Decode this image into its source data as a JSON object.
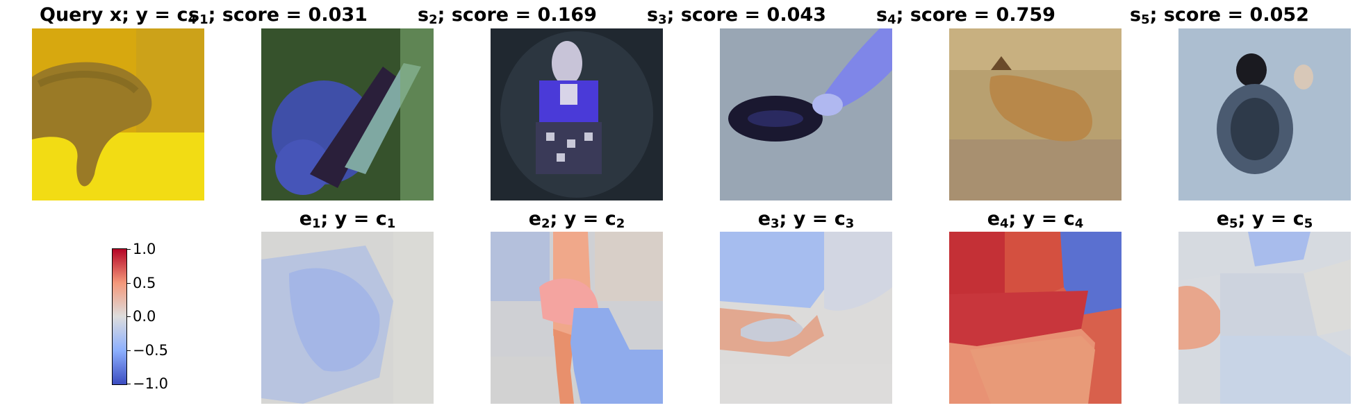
{
  "query": {
    "label": "Query x",
    "class_prefix": "; y = c",
    "class_index": "4",
    "image": "query-image-dolphin"
  },
  "samples": [
    {
      "label": "s",
      "index": "1",
      "score_text": "; score = 0.031",
      "image": "sample-image-butterfly"
    },
    {
      "label": "s",
      "index": "2",
      "score_text": "; score = 0.169",
      "image": "sample-image-person"
    },
    {
      "label": "s",
      "index": "3",
      "score_text": "; score = 0.043",
      "image": "sample-image-shoe"
    },
    {
      "label": "s",
      "index": "4",
      "score_text": "; score = 0.759",
      "image": "sample-image-animal"
    },
    {
      "label": "s",
      "index": "5",
      "score_text": "; score = 0.052",
      "image": "sample-image-insect"
    }
  ],
  "explanations": [
    {
      "label": "e",
      "index": "1",
      "class_prefix": "; y = c",
      "class_index": "1",
      "image": "explanation-map-1"
    },
    {
      "label": "e",
      "index": "2",
      "class_prefix": "; y = c",
      "class_index": "2",
      "image": "explanation-map-2"
    },
    {
      "label": "e",
      "index": "3",
      "class_prefix": "; y = c",
      "class_index": "3",
      "image": "explanation-map-3"
    },
    {
      "label": "e",
      "index": "4",
      "class_prefix": "; y = c",
      "class_index": "4",
      "image": "explanation-map-4"
    },
    {
      "label": "e",
      "index": "5",
      "class_prefix": "; y = c",
      "class_index": "5",
      "image": "explanation-map-5"
    }
  ],
  "colorbar": {
    "ticks": [
      "1.0",
      "0.5",
      "0.0",
      "−0.5",
      "−1.0"
    ],
    "colormap": [
      "#b40426",
      "#f4987a",
      "#dddddd",
      "#8db0fe",
      "#3b4cc0"
    ]
  }
}
